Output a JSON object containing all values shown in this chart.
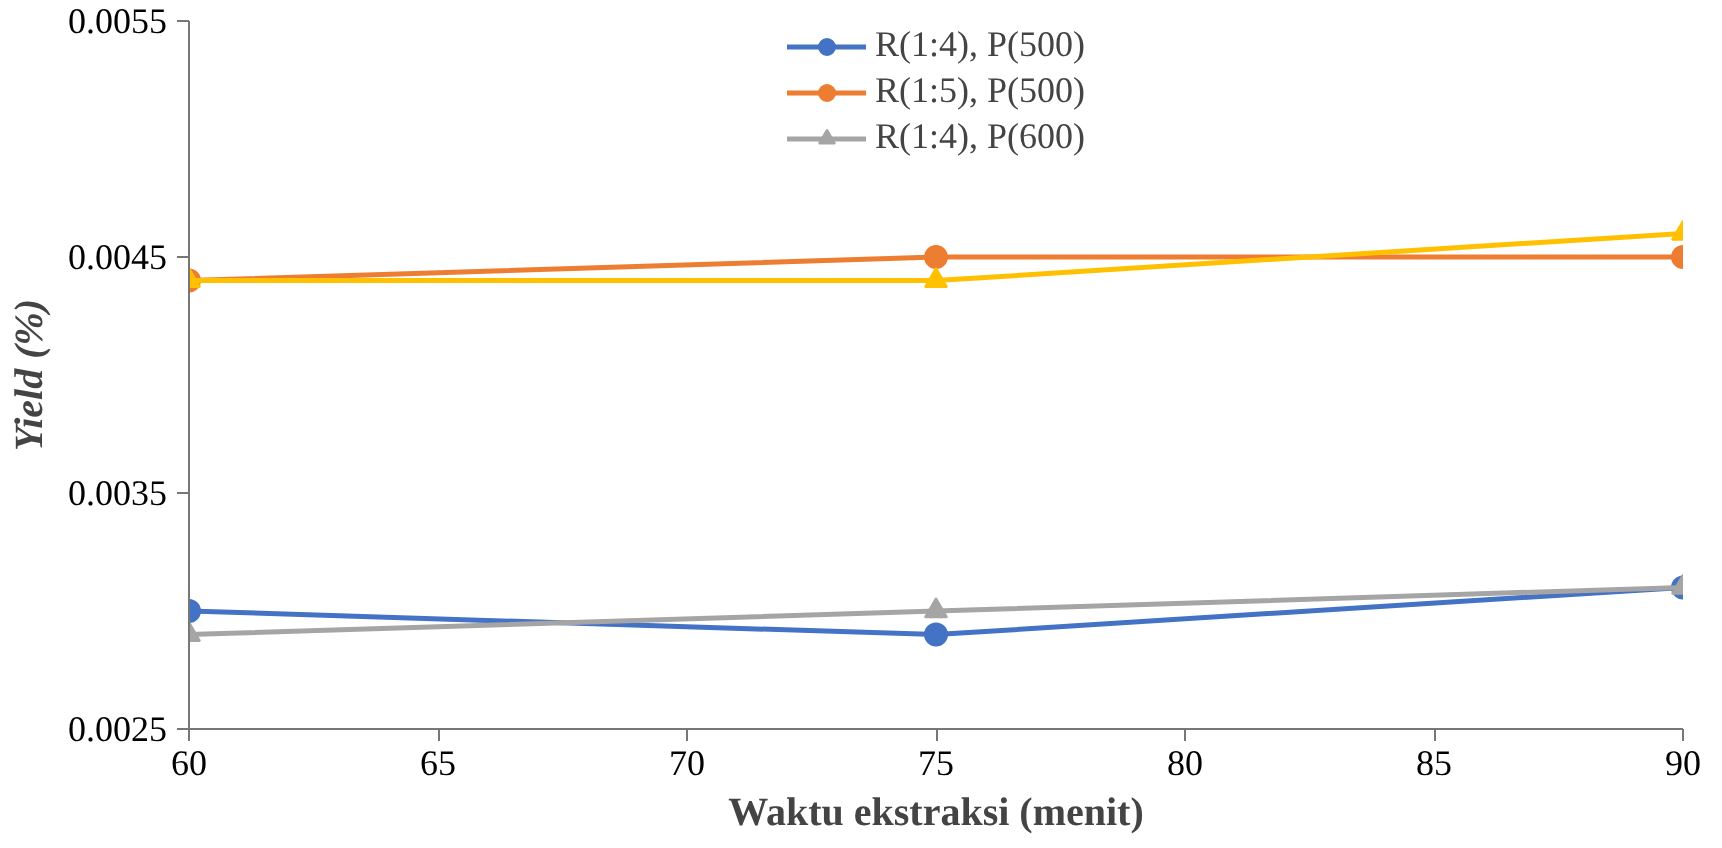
{
  "chart_data": {
    "type": "line",
    "xlabel": "Waktu ekstraksi (menit)",
    "ylabel": "Yield (%)",
    "x": [
      60,
      75,
      90
    ],
    "xlim": [
      60,
      90
    ],
    "xticks": [
      60,
      65,
      70,
      75,
      80,
      85,
      90
    ],
    "ylim": [
      0.0025,
      0.0055
    ],
    "yticks": [
      0.0025,
      0.0035,
      0.0045,
      0.0055
    ],
    "grid": false,
    "legend": "top",
    "series": [
      {
        "name": "R(1:4), P(500)",
        "color": "#4472c4",
        "marker": "circle",
        "values": [
          0.003,
          0.0029,
          0.0031
        ]
      },
      {
        "name": "R(1:5), P(500)",
        "color": "#ed7d31",
        "marker": "circle",
        "values": [
          0.0044,
          0.0045,
          0.0045
        ]
      },
      {
        "name": "R(1:4), P(600)",
        "color": "#a5a5a5",
        "marker": "triangle",
        "values": [
          0.0029,
          0.003,
          0.0031
        ]
      },
      {
        "color": "#ffc000",
        "marker": "triangle",
        "values": [
          0.0044,
          0.0044,
          0.0046
        ]
      }
    ]
  }
}
